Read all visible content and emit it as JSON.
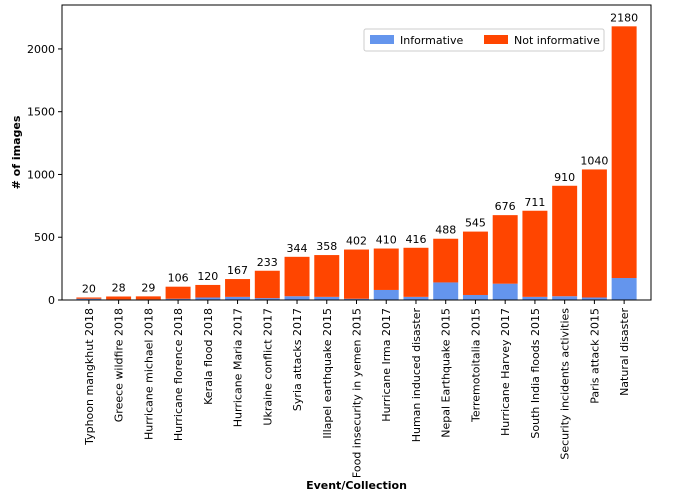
{
  "chart_data": {
    "type": "bar",
    "stacked": true,
    "title": "",
    "xlabel": "Event/Collection",
    "ylabel": "# of images",
    "ylim": [
      0,
      2350
    ],
    "yticks": [
      0,
      500,
      1000,
      1500,
      2000
    ],
    "grid": false,
    "legend_position": "top-right",
    "categories": [
      "Typhoon mangkhut 2018",
      "Greece wildfire 2018",
      "Hurricane michael 2018",
      "Hurricane florence 2018",
      "Kerala flood 2018",
      "Hurricane Maria 2017",
      "Ukraine conflict 2017",
      "Syria attacks 2017",
      "Illapel earthquake 2015",
      "Food insecurity in yemen 2015",
      "Hurricane Irma 2017",
      "Human induced disaster",
      "Nepal Earthquake 2015",
      "Terremotoitalia 2015",
      "Hurricane Harvey 2017",
      "South India floods 2015",
      "Security incidents activities",
      "Paris attack 2015",
      "Natural disaster"
    ],
    "totals": [
      20,
      28,
      29,
      106,
      120,
      167,
      233,
      344,
      358,
      402,
      410,
      416,
      488,
      545,
      676,
      711,
      910,
      1040,
      2180
    ],
    "series": [
      {
        "name": "Informative",
        "color": "#6495ED",
        "values": [
          10,
          5,
          5,
          10,
          20,
          25,
          15,
          30,
          25,
          10,
          80,
          25,
          140,
          40,
          130,
          25,
          30,
          20,
          175
        ]
      },
      {
        "name": "Not informative",
        "color": "#FF4500",
        "values": [
          10,
          23,
          24,
          96,
          100,
          142,
          218,
          314,
          333,
          392,
          330,
          391,
          348,
          505,
          546,
          686,
          880,
          1020,
          2005
        ]
      }
    ]
  }
}
